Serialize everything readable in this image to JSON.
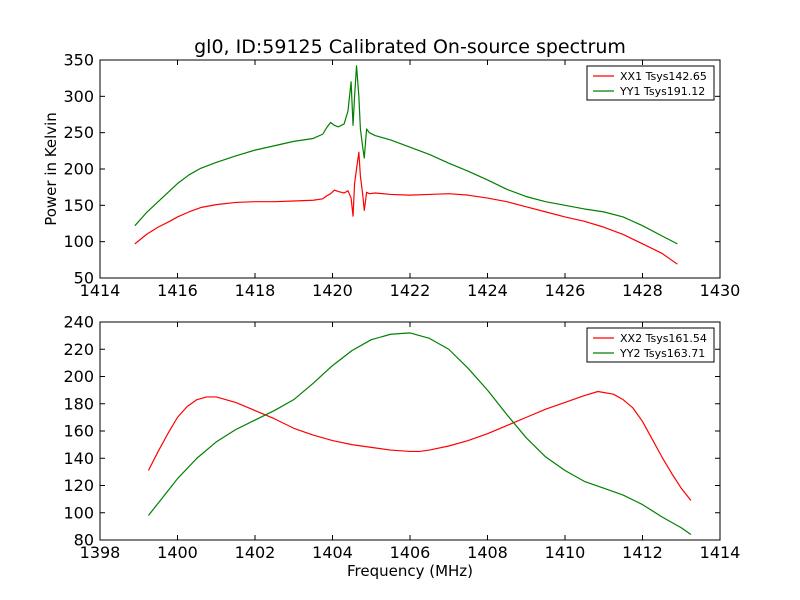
{
  "figure": {
    "title": "gl0, ID:59125 Calibrated On-source spectrum",
    "background": "#ffffff"
  },
  "colors": {
    "xx": "#ff0000",
    "yy": "#008000",
    "axes": "#000000"
  },
  "chart_data": [
    {
      "type": "line",
      "title": "gl0, ID:59125 Calibrated On-source spectrum",
      "xlabel": "",
      "ylabel": "Power in Kelvin",
      "xlim": [
        1414,
        1430
      ],
      "ylim": [
        50,
        350
      ],
      "xticks": [
        1414,
        1416,
        1418,
        1420,
        1422,
        1424,
        1426,
        1428,
        1430
      ],
      "yticks": [
        50,
        100,
        150,
        200,
        250,
        300,
        350
      ],
      "xtick_labels": [
        "1414",
        "1416",
        "1418",
        "1420",
        "1422",
        "1424",
        "1426",
        "1428",
        "1430"
      ],
      "ytick_labels": [
        "50",
        "100",
        "150",
        "200",
        "250",
        "300",
        "350"
      ],
      "grid": false,
      "legend_position": "top-right",
      "series": [
        {
          "name": "XX1 Tsys142.65",
          "color": "#ff0000",
          "x": [
            1414.9,
            1415.2,
            1415.5,
            1415.8,
            1416.0,
            1416.3,
            1416.6,
            1417.0,
            1417.5,
            1418.0,
            1418.5,
            1419.0,
            1419.5,
            1419.75,
            1419.85,
            1419.95,
            1420.05,
            1420.15,
            1420.3,
            1420.4,
            1420.48,
            1420.53,
            1420.57,
            1420.62,
            1420.68,
            1420.72,
            1420.78,
            1420.82,
            1420.88,
            1420.95,
            1421.1,
            1421.5,
            1422.0,
            1422.5,
            1423.0,
            1423.5,
            1424.0,
            1424.5,
            1425.0,
            1425.5,
            1426.0,
            1426.5,
            1427.0,
            1427.5,
            1428.0,
            1428.5,
            1428.9
          ],
          "y": [
            97,
            110,
            120,
            128,
            134,
            141,
            147,
            151,
            154,
            155,
            155,
            156,
            157,
            159,
            163,
            166,
            171,
            169,
            167,
            170,
            160,
            135,
            180,
            200,
            223,
            190,
            165,
            143,
            168,
            166,
            167,
            165,
            164,
            165,
            166,
            164,
            160,
            155,
            148,
            141,
            134,
            128,
            120,
            110,
            97,
            84,
            69
          ]
        },
        {
          "name": "YY1 Tsys191.12",
          "color": "#008000",
          "x": [
            1414.9,
            1415.2,
            1415.5,
            1415.8,
            1416.0,
            1416.3,
            1416.6,
            1417.0,
            1417.5,
            1418.0,
            1418.5,
            1419.0,
            1419.5,
            1419.75,
            1419.85,
            1419.95,
            1420.05,
            1420.15,
            1420.3,
            1420.4,
            1420.48,
            1420.53,
            1420.57,
            1420.62,
            1420.68,
            1420.72,
            1420.78,
            1420.82,
            1420.88,
            1420.95,
            1421.1,
            1421.5,
            1422.0,
            1422.5,
            1423.0,
            1423.5,
            1424.0,
            1424.5,
            1425.0,
            1425.5,
            1426.0,
            1426.5,
            1427.0,
            1427.5,
            1428.0,
            1428.5,
            1428.9
          ],
          "y": [
            122,
            140,
            155,
            170,
            180,
            192,
            201,
            209,
            218,
            226,
            232,
            238,
            242,
            248,
            257,
            264,
            260,
            258,
            262,
            280,
            320,
            260,
            300,
            342,
            300,
            255,
            230,
            215,
            255,
            250,
            246,
            240,
            230,
            220,
            208,
            197,
            185,
            172,
            162,
            155,
            150,
            145,
            141,
            134,
            122,
            108,
            97
          ]
        }
      ]
    },
    {
      "type": "line",
      "title": "",
      "xlabel": "Frequency (MHz)",
      "ylabel": "",
      "xlim": [
        1398,
        1414
      ],
      "ylim": [
        80,
        240
      ],
      "xticks": [
        1398,
        1400,
        1402,
        1404,
        1406,
        1408,
        1410,
        1412,
        1414
      ],
      "yticks": [
        80,
        100,
        120,
        140,
        160,
        180,
        200,
        220,
        240
      ],
      "xtick_labels": [
        "1398",
        "1400",
        "1402",
        "1404",
        "1406",
        "1408",
        "1410",
        "1412",
        "1414"
      ],
      "ytick_labels": [
        "80",
        "100",
        "120",
        "140",
        "160",
        "180",
        "200",
        "220",
        "240"
      ],
      "grid": false,
      "legend_position": "top-right",
      "series": [
        {
          "name": "XX2 Tsys161.54",
          "color": "#ff0000",
          "x": [
            1399.25,
            1399.5,
            1399.75,
            1400.0,
            1400.25,
            1400.5,
            1400.75,
            1401.0,
            1401.25,
            1401.5,
            1401.75,
            1402.0,
            1402.5,
            1403.0,
            1403.5,
            1404.0,
            1404.5,
            1405.0,
            1405.5,
            1406.0,
            1406.25,
            1406.5,
            1407.0,
            1407.5,
            1408.0,
            1408.5,
            1409.0,
            1409.5,
            1410.0,
            1410.5,
            1410.85,
            1411.25,
            1411.5,
            1411.75,
            1412.0,
            1412.25,
            1412.5,
            1412.75,
            1413.0,
            1413.25
          ],
          "y": [
            131,
            145,
            158,
            170,
            178,
            183,
            185,
            185,
            183,
            181,
            178,
            175,
            169,
            162,
            157,
            153,
            150,
            148,
            146,
            145,
            145,
            146,
            149,
            153,
            158,
            164,
            170,
            176,
            181,
            186,
            189,
            187,
            183,
            177,
            167,
            154,
            141,
            129,
            118,
            109
          ]
        },
        {
          "name": "YY2 Tsys163.71",
          "color": "#008000",
          "x": [
            1399.25,
            1399.5,
            1399.75,
            1400.0,
            1400.5,
            1401.0,
            1401.5,
            1402.0,
            1402.5,
            1403.0,
            1403.5,
            1404.0,
            1404.5,
            1405.0,
            1405.5,
            1406.0,
            1406.5,
            1407.0,
            1407.5,
            1408.0,
            1408.5,
            1409.0,
            1409.5,
            1410.0,
            1410.5,
            1411.0,
            1411.5,
            1412.0,
            1412.5,
            1413.0,
            1413.25
          ],
          "y": [
            98,
            107,
            116,
            125,
            140,
            152,
            161,
            168,
            175,
            183,
            195,
            208,
            219,
            227,
            231,
            232,
            228,
            220,
            206,
            190,
            172,
            155,
            141,
            131,
            123,
            118,
            113,
            106,
            97,
            89,
            84
          ]
        }
      ]
    }
  ]
}
